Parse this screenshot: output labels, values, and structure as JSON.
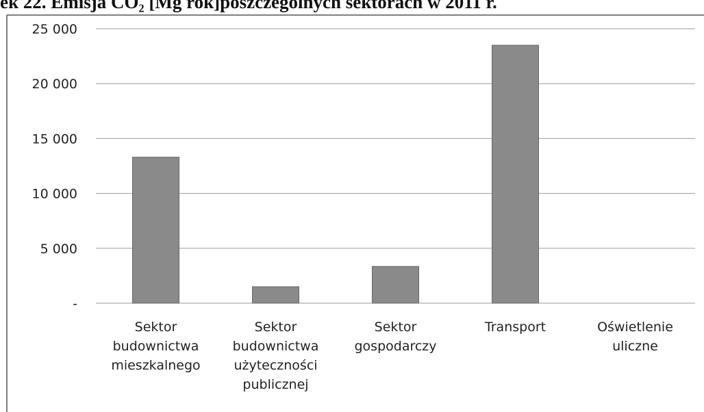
{
  "chart_data": {
    "type": "bar",
    "title": "ek 22. Emisja CO₂ [Mg rok]poszczególnych sektorach w 2011 r.",
    "categories": [
      [
        "Sektor",
        "budownictwa",
        "mieszkalnego"
      ],
      [
        "Sektor",
        "budownictwa",
        "użyteczności",
        "publicznej"
      ],
      [
        "Sektor",
        "gospodarczy"
      ],
      [
        "Transport"
      ],
      [
        "Oświetlenie",
        "uliczne"
      ]
    ],
    "values": [
      13300,
      1500,
      3350,
      23500,
      0
    ],
    "color": "#8a8a8a",
    "ylim": [
      0,
      25000
    ],
    "yticks": [
      {
        "value": 0,
        "label": "-"
      },
      {
        "value": 5000,
        "label": "5 000"
      },
      {
        "value": 10000,
        "label": "10 000"
      },
      {
        "value": 15000,
        "label": "15 000"
      },
      {
        "value": 20000,
        "label": "20 000"
      },
      {
        "value": 25000,
        "label": "25 000"
      }
    ],
    "grid": true
  }
}
